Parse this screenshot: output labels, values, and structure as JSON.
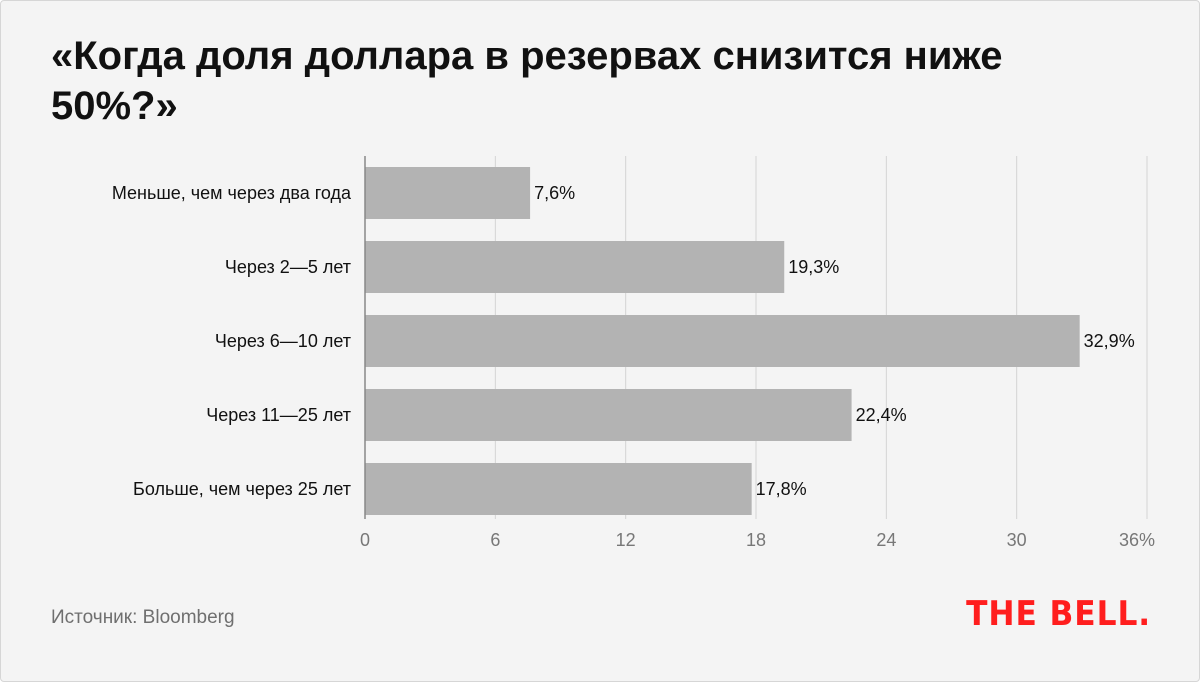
{
  "title": "«Когда доля доллара в резервах снизится ниже 50%?»",
  "source": "Источник: Bloomberg",
  "logo": "THE BELL.",
  "colors": {
    "background": "#f4f4f4",
    "bar": "#b3b3b3",
    "grid": "#d4d4d4",
    "text": "#111111",
    "muted": "#777777",
    "logo": "#ff1e1e"
  },
  "chart_data": {
    "type": "bar",
    "orientation": "horizontal",
    "categories": [
      "Меньше, чем через два года",
      "Через 2—5 лет",
      "Через 6—10 лет",
      "Через 11—25 лет",
      "Больше, чем через 25 лет"
    ],
    "values": [
      7.6,
      19.3,
      32.9,
      22.4,
      17.8
    ],
    "value_labels": [
      "7,6%",
      "19,3%",
      "32,9%",
      "22,4%",
      "17,8%"
    ],
    "xlim": [
      0,
      36
    ],
    "x_ticks": [
      0,
      6,
      12,
      18,
      24,
      30,
      36
    ],
    "x_tick_labels": [
      "0",
      "6",
      "12",
      "18",
      "24",
      "30",
      "36%"
    ],
    "grid": true,
    "title": "«Когда доля доллара в резервах снизится ниже 50%?»",
    "xlabel": "",
    "ylabel": ""
  }
}
